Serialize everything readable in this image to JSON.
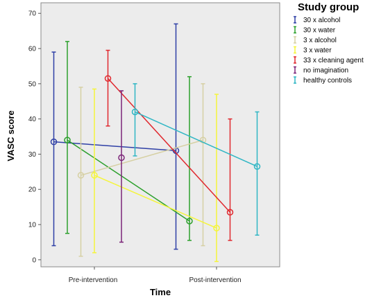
{
  "chart_data": {
    "type": "line",
    "title": "",
    "xlabel": "Time",
    "ylabel": "VASC score",
    "categories": [
      "Pre-intervention",
      "Post-intervention"
    ],
    "ylim": [
      -2,
      73
    ],
    "yticks": [
      0,
      10,
      20,
      30,
      40,
      50,
      60,
      70
    ],
    "grid": false,
    "background_color": "#ececec",
    "legend": {
      "title": "Study group",
      "placement": "right"
    },
    "series": [
      {
        "name": "30 x alcohol",
        "color": "#2e3fa6",
        "values": [
          33.5,
          31.0
        ],
        "lower": [
          4,
          3
        ],
        "upper": [
          59,
          67
        ]
      },
      {
        "name": "30 x water",
        "color": "#2ca02c",
        "values": [
          34.0,
          11.0
        ],
        "lower": [
          7.5,
          5.5
        ],
        "upper": [
          62,
          52
        ]
      },
      {
        "name": " 3 x alcohol",
        "color": "#d6d0a3",
        "values": [
          24.0,
          34.0
        ],
        "lower": [
          1,
          4
        ],
        "upper": [
          49,
          50
        ]
      },
      {
        "name": " 3 x water",
        "color": "#f5f53b",
        "values": [
          24.0,
          9.0
        ],
        "lower": [
          2,
          -0.5
        ],
        "upper": [
          48.5,
          47
        ]
      },
      {
        "name": "33 x cleaning agent",
        "color": "#e0282e",
        "values": [
          51.5,
          13.5
        ],
        "lower": [
          38,
          5.5
        ],
        "upper": [
          59.5,
          40
        ]
      },
      {
        "name": "no imagination",
        "color": "#7b2478",
        "values": [
          29.0,
          null
        ],
        "lower": [
          5,
          null
        ],
        "upper": [
          48,
          null
        ]
      },
      {
        "name": "healthy controls",
        "color": "#2fb6c4",
        "values": [
          42.0,
          26.5
        ],
        "lower": [
          29.5,
          7
        ],
        "upper": [
          50,
          42
        ]
      }
    ]
  }
}
